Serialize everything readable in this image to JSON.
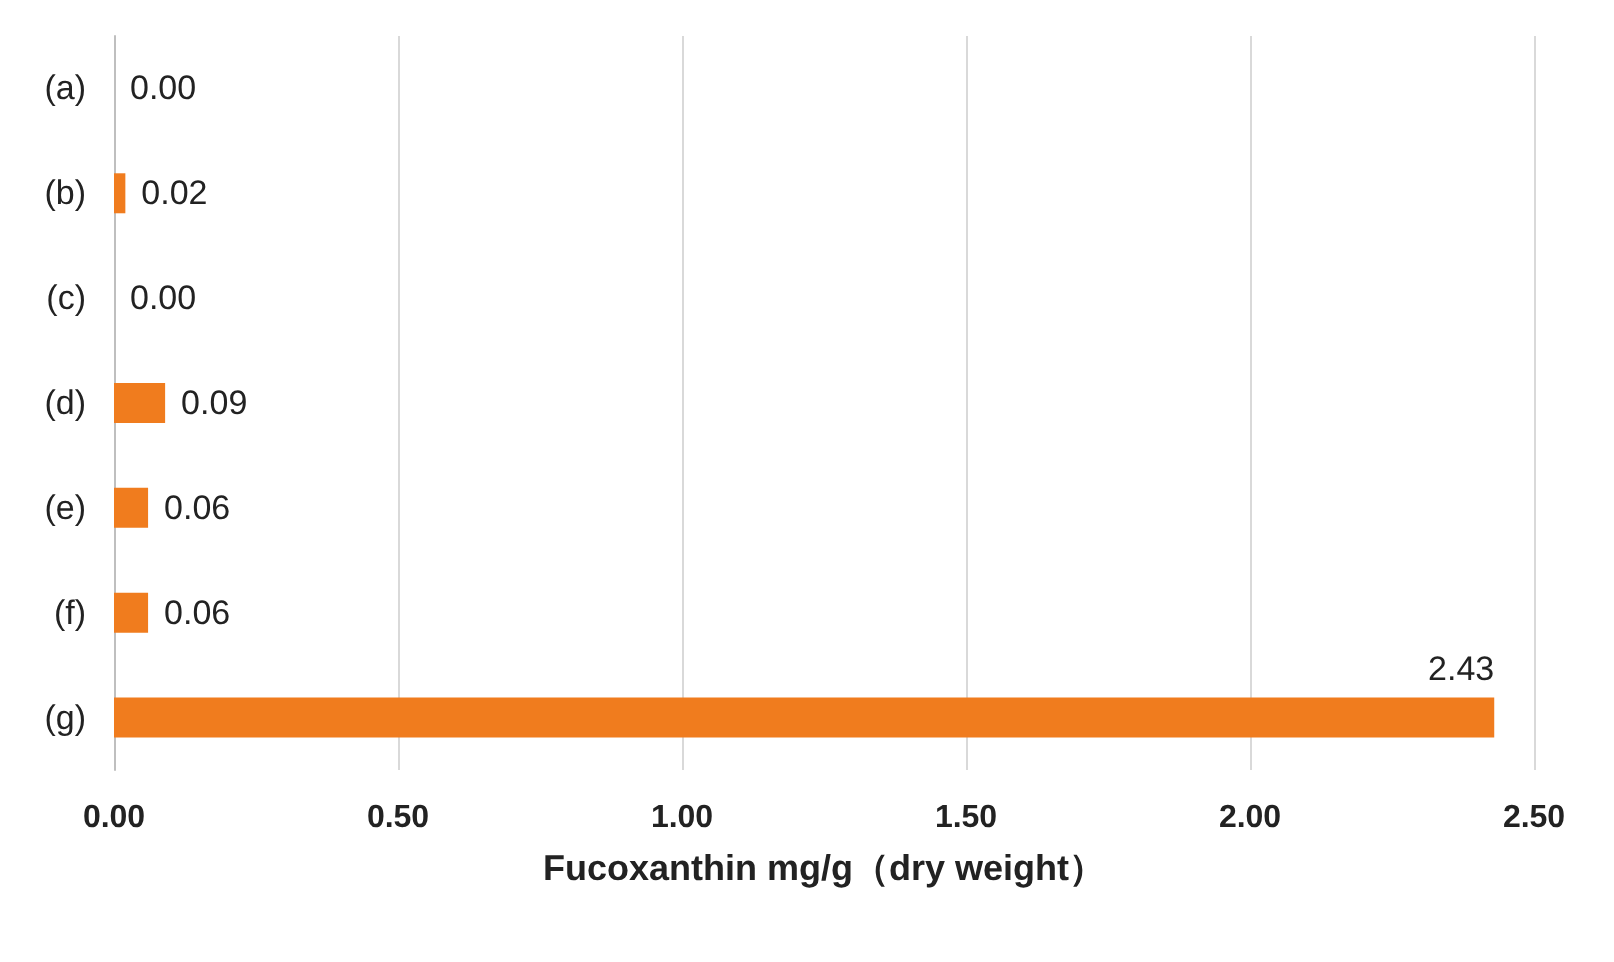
{
  "chart_data": {
    "type": "bar",
    "orientation": "horizontal",
    "categories": [
      "(a)",
      "(b)",
      "(c)",
      "(d)",
      "(e)",
      "(f)",
      "(g)"
    ],
    "values": [
      0,
      0.02,
      0,
      0.09,
      0.06,
      0.06,
      2.43
    ],
    "value_labels": [
      "0.00",
      "0.02",
      "0.00",
      "0.09",
      "0.06",
      "0.06",
      "2.43"
    ],
    "color": "#f07c1e",
    "xlabel": "Fucoxanthin mg/g（dry weight）",
    "xlim": [
      0,
      2.5
    ],
    "xticks": [
      {
        "value": 0,
        "label": "0.00"
      },
      {
        "value": 0.5,
        "label": "0.50"
      },
      {
        "value": 1,
        "label": "1.00"
      },
      {
        "value": 1.5,
        "label": "1.50"
      },
      {
        "value": 2,
        "label": "2.00"
      },
      {
        "value": 2.5,
        "label": "2.50"
      }
    ],
    "grid": "x"
  }
}
